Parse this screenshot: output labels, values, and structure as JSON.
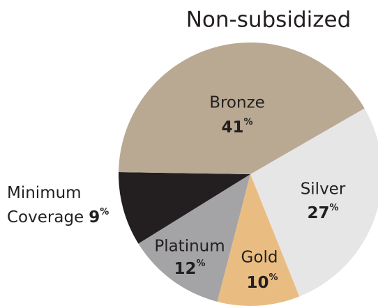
{
  "chart_data": {
    "type": "pie",
    "title": "Non-subsidized",
    "categories": [
      "Silver",
      "Gold",
      "Platinum",
      "Minimum Coverage",
      "Bronze"
    ],
    "values": [
      27,
      10,
      12,
      9,
      41
    ],
    "value_labels": [
      "27%",
      "10%",
      "12%",
      "9%",
      "41%"
    ],
    "colors": [
      "#e6e6e7",
      "#e9bd82",
      "#a4a4a7",
      "#231f20",
      "#b9a993"
    ]
  }
}
